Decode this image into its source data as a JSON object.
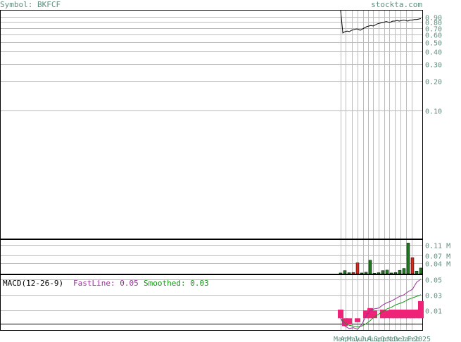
{
  "header": {
    "symbol": "Symbol: BKFCF",
    "site": "stockta.com"
  },
  "colors": {
    "price_line": "#000000",
    "grid": "#bbbbbb",
    "axis_text": "#5f8f7f",
    "vol_up": "#1f7a1f",
    "vol_down": "#d42a1f",
    "fastline": "#993399",
    "smoothed": "#119911",
    "histogram": "#ee2277"
  },
  "chart_data": [
    {
      "type": "line",
      "title": "",
      "y_scale": "log",
      "ylim": [
        0.005,
        1.05
      ],
      "yticks": [
        0.9,
        0.8,
        0.7,
        0.6,
        0.5,
        0.4,
        0.3,
        0.2,
        0.1
      ],
      "ytick_labels": [
        "0.90",
        "0.80",
        "0.70",
        "0.60",
        "0.50",
        "0.40",
        "0.30",
        "0.20",
        "0.10"
      ],
      "series": [
        {
          "values": [
            1.05,
            0.62,
            0.64,
            0.65,
            0.64,
            0.66,
            0.67,
            0.68,
            0.68,
            0.66,
            0.68,
            0.7,
            0.72,
            0.73,
            0.74,
            0.73,
            0.75,
            0.77,
            0.78,
            0.79,
            0.8,
            0.81,
            0.8,
            0.8,
            0.82,
            0.82,
            0.83,
            0.82,
            0.83,
            0.84,
            0.83,
            0.82,
            0.84,
            0.84,
            0.85,
            0.85,
            0.86,
            0.87
          ]
        }
      ]
    },
    {
      "type": "bar",
      "title": "",
      "ylim": [
        0,
        0.13
      ],
      "yticks": [
        0.11,
        0.07,
        0.04
      ],
      "ytick_labels": [
        "0.11 M",
        "0.07 M",
        "0.04 M"
      ],
      "bars": [
        {
          "v": 0.003,
          "up": true
        },
        {
          "v": 0.012,
          "up": true
        },
        {
          "v": 0.004,
          "up": true
        },
        {
          "v": 0.005,
          "up": false
        },
        {
          "v": 0.042,
          "up": false
        },
        {
          "v": 0.003,
          "up": true
        },
        {
          "v": 0.006,
          "up": true
        },
        {
          "v": 0.052,
          "up": true
        },
        {
          "v": 0.002,
          "up": true
        },
        {
          "v": 0.004,
          "up": true
        },
        {
          "v": 0.012,
          "up": true
        },
        {
          "v": 0.014,
          "up": true
        },
        {
          "v": 0.003,
          "up": true
        },
        {
          "v": 0.005,
          "up": true
        },
        {
          "v": 0.013,
          "up": true
        },
        {
          "v": 0.02,
          "up": true
        },
        {
          "v": 0.118,
          "up": true
        },
        {
          "v": 0.062,
          "up": false
        },
        {
          "v": 0.01,
          "up": true
        },
        {
          "v": 0.022,
          "up": true
        }
      ]
    },
    {
      "type": "line",
      "title": "",
      "label": "MACD(12-26-9)",
      "fastline_label": "FastLine: 0.05",
      "smoothed_label": "Smoothed: 0.03",
      "ylim": [
        -0.015,
        0.055
      ],
      "yticks": [
        0.05,
        0.03,
        0.01
      ],
      "ytick_labels": [
        "0.05",
        "0.03",
        "0.01"
      ],
      "x_labels": [
        "Mar",
        "Apr",
        "May",
        "Jun",
        "Jul",
        "Aug",
        "Sep",
        "Oct",
        "Nov",
        "Dec",
        "Jan",
        "Feb",
        "2025"
      ],
      "fast": [
        0.0,
        -0.01,
        -0.013,
        -0.012,
        -0.014,
        -0.008,
        0.003,
        0.01,
        0.012,
        0.013,
        0.017,
        0.02,
        0.022,
        0.025,
        0.028,
        0.03,
        0.034,
        0.037,
        0.046,
        0.05
      ],
      "smooth": [
        0.0,
        -0.006,
        -0.009,
        -0.01,
        -0.011,
        -0.01,
        -0.007,
        -0.003,
        0.002,
        0.005,
        0.009,
        0.012,
        0.014,
        0.017,
        0.019,
        0.021,
        0.024,
        0.026,
        0.028,
        0.03
      ],
      "hist": [
        0.011,
        -0.01,
        -0.008,
        0.0,
        -0.005,
        0.0,
        0.01,
        0.013,
        0.01,
        0.0,
        0.011,
        0.01,
        0.011,
        0.011,
        0.011,
        0.011,
        0.011,
        0.011,
        0.011,
        0.022
      ]
    }
  ]
}
